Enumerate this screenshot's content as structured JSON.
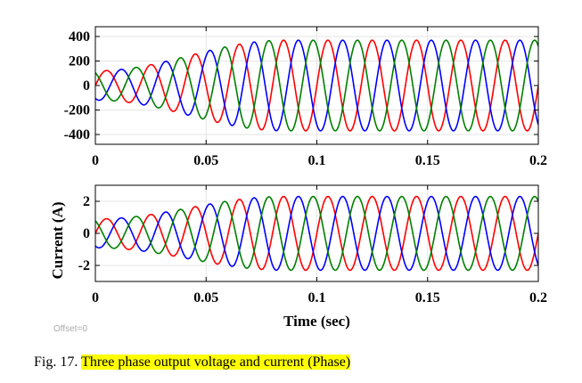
{
  "chart_data": [
    {
      "type": "line",
      "title": "",
      "xlabel": "",
      "ylabel": "",
      "xlim": [
        0,
        0.2
      ],
      "ylim": [
        -480,
        480
      ],
      "x_ticks": [
        0,
        0.05,
        0.1,
        0.15,
        0.2
      ],
      "x_tick_labels": [
        "0",
        "0.05",
        "0.1",
        "0.15",
        "0.2"
      ],
      "y_ticks": [
        400,
        200,
        0,
        -200,
        -400
      ],
      "y_tick_labels": [
        "400",
        "200",
        "0",
        "-200",
        "-400"
      ],
      "grid": true,
      "signal": {
        "frequency_hz": 50,
        "amplitude_start": 120,
        "amplitude_steady": 370,
        "steady_at_sec": 0.085,
        "phase_shift_deg": 120
      },
      "series": [
        {
          "color": "#ff0000",
          "phase_deg": 0
        },
        {
          "color": "#0000ff",
          "phase_deg": -120
        },
        {
          "color": "#008000",
          "phase_deg": 120
        }
      ]
    },
    {
      "type": "line",
      "title": "",
      "xlabel": "Time (sec)",
      "ylabel": "Current (A)",
      "xlim": [
        0,
        0.2
      ],
      "ylim": [
        -3,
        3
      ],
      "x_ticks": [
        0,
        0.05,
        0.1,
        0.15,
        0.2
      ],
      "x_tick_labels": [
        "0",
        "0.05",
        "0.1",
        "0.15",
        "0.2"
      ],
      "y_ticks": [
        2,
        0,
        -2
      ],
      "y_tick_labels": [
        "2",
        "0",
        "-2"
      ],
      "grid": true,
      "signal": {
        "frequency_hz": 50,
        "amplitude_start": 0.9,
        "amplitude_steady": 2.3,
        "steady_at_sec": 0.085,
        "phase_shift_deg": 120
      },
      "series": [
        {
          "color": "#ff0000",
          "phase_deg": 0
        },
        {
          "color": "#0000ff",
          "phase_deg": -120
        },
        {
          "color": "#008000",
          "phase_deg": 120
        }
      ]
    }
  ],
  "offset_label": "Offset=0",
  "caption": {
    "prefix": "Fig. 17. ",
    "text": "Three phase output voltage and current (Phase)",
    "highlight_color": "#ffff00"
  }
}
